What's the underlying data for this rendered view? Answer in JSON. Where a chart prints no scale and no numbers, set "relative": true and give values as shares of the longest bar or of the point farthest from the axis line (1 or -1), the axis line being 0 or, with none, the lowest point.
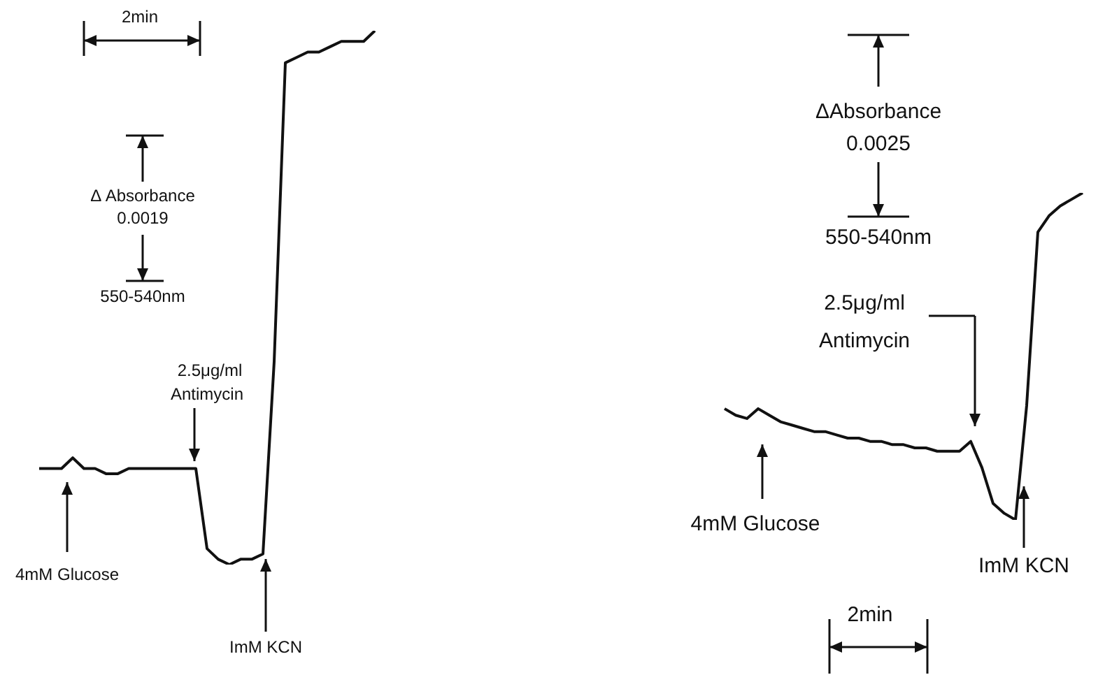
{
  "chart_data": [
    {
      "type": "line",
      "relative": true,
      "marker": "none",
      "color": "#111111",
      "categories": [
        null,
        null,
        null,
        null,
        null,
        null,
        null,
        null,
        null,
        null,
        null,
        null,
        null,
        null,
        null,
        null,
        null,
        null,
        null,
        null,
        null,
        null,
        null,
        null,
        null,
        null,
        null,
        null,
        null,
        null,
        null
      ],
      "values": [
        0.18,
        0.18,
        0.18,
        0.2,
        0.18,
        0.18,
        0.17,
        0.17,
        0.18,
        0.18,
        0.18,
        0.18,
        0.18,
        0.18,
        0.18,
        0.03,
        0.01,
        0,
        0.01,
        0.01,
        0.02,
        0.38,
        0.94,
        0.95,
        0.96,
        0.96,
        0.97,
        0.98,
        0.98,
        0.98,
        1
      ],
      "annotations": [
        "2min",
        "Δ Absorbance",
        "0.0019",
        "550-540nm",
        "2.5μg/ml",
        "Antimycin",
        "4mM Glucose",
        "ImM KCN"
      ]
    },
    {
      "type": "line",
      "relative": true,
      "marker": "none",
      "color": "#111111",
      "categories": [
        null,
        null,
        null,
        null,
        null,
        null,
        null,
        null,
        null,
        null,
        null,
        null,
        null,
        null,
        null,
        null,
        null,
        null,
        null,
        null,
        null,
        null,
        null,
        null,
        null,
        null,
        null,
        null,
        null,
        null,
        null,
        null,
        null
      ],
      "values": [
        0.34,
        0.32,
        0.31,
        0.34,
        0.32,
        0.3,
        0.29,
        0.28,
        0.27,
        0.27,
        0.26,
        0.25,
        0.25,
        0.24,
        0.24,
        0.23,
        0.23,
        0.22,
        0.22,
        0.21,
        0.21,
        0.21,
        0.24,
        0.16,
        0.05,
        0.02,
        0,
        0.35,
        0.88,
        0.93,
        0.96,
        0.98,
        1
      ],
      "annotations": [
        "2min",
        "ΔAbsorbance",
        "0.0025",
        "550-540nm",
        "2.5μg/ml",
        "Antimycin",
        "4mM Glucose",
        "ImM KCN"
      ]
    }
  ]
}
